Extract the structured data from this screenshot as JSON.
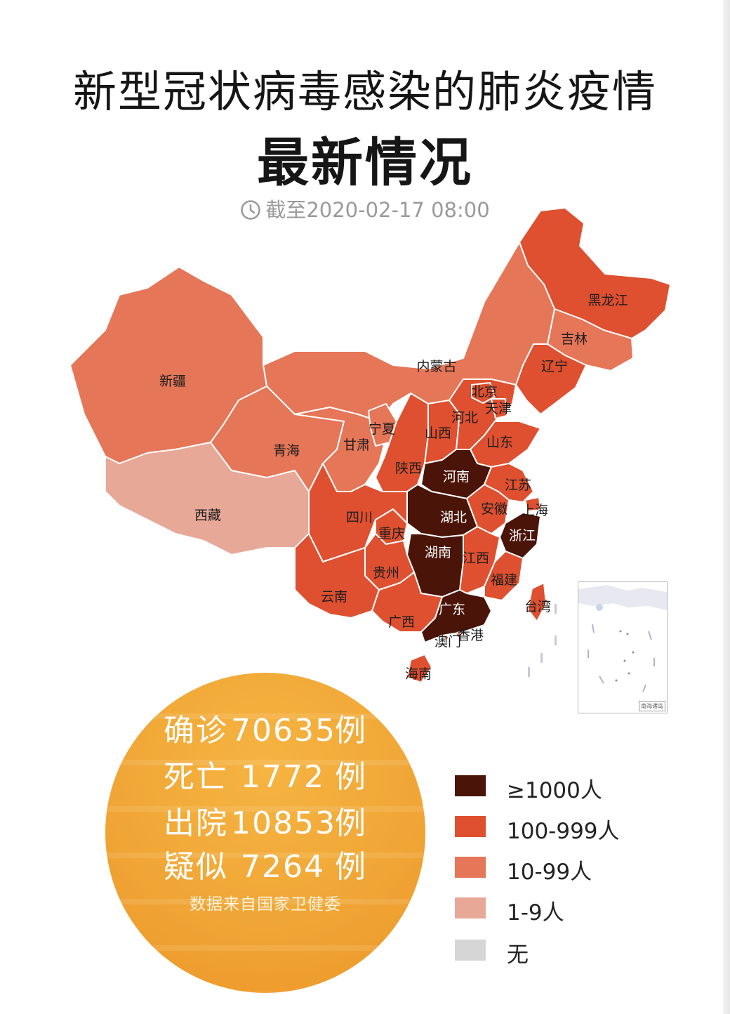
{
  "header": {
    "title": "新型冠状病毒感染的肺炎疫情",
    "subtitle": "最新情况",
    "timestamp": "截至2020-02-17 08:00",
    "clock_icon": "clock-icon"
  },
  "colors": {
    "level_1000_plus": "#4a1408",
    "level_100_999": "#de5030",
    "level_10_99": "#e67658",
    "level_1_9": "#e8a898",
    "level_none": "#d6d6d6",
    "stats_circle": "#f0a636"
  },
  "provinces": [
    {
      "name": "黑龙江",
      "level": "100-999"
    },
    {
      "name": "吉林",
      "level": "10-99"
    },
    {
      "name": "辽宁",
      "level": "100-999"
    },
    {
      "name": "内蒙古",
      "level": "10-99"
    },
    {
      "name": "北京",
      "level": "100-999"
    },
    {
      "name": "天津",
      "level": "100-999"
    },
    {
      "name": "河北",
      "level": "100-999"
    },
    {
      "name": "新疆",
      "level": "10-99"
    },
    {
      "name": "宁夏",
      "level": "10-99"
    },
    {
      "name": "山西",
      "level": "100-999"
    },
    {
      "name": "山东",
      "level": "100-999"
    },
    {
      "name": "青海",
      "level": "10-99"
    },
    {
      "name": "甘肃",
      "level": "10-99"
    },
    {
      "name": "陕西",
      "level": "100-999"
    },
    {
      "name": "河南",
      "level": "≥1000"
    },
    {
      "name": "江苏",
      "level": "100-999"
    },
    {
      "name": "西藏",
      "level": "1-9"
    },
    {
      "name": "四川",
      "level": "100-999"
    },
    {
      "name": "安徽",
      "level": "100-999"
    },
    {
      "name": "上海",
      "level": "100-999"
    },
    {
      "name": "湖北",
      "level": "≥1000"
    },
    {
      "name": "重庆",
      "level": "100-999"
    },
    {
      "name": "浙江",
      "level": "≥1000"
    },
    {
      "name": "湖南",
      "level": "≥1000"
    },
    {
      "name": "江西",
      "level": "100-999"
    },
    {
      "name": "贵州",
      "level": "100-999"
    },
    {
      "name": "福建",
      "level": "100-999"
    },
    {
      "name": "云南",
      "level": "100-999"
    },
    {
      "name": "台湾",
      "level": "10-99"
    },
    {
      "name": "广东",
      "level": "≥1000"
    },
    {
      "name": "广西",
      "level": "100-999"
    },
    {
      "name": "香港",
      "level": "10-99"
    },
    {
      "name": "澳门",
      "level": "10-99"
    },
    {
      "name": "海南",
      "level": "100-999"
    }
  ],
  "inset": {
    "label": "南海诸岛"
  },
  "stats": {
    "rows": [
      {
        "label": "确诊",
        "value": "70635",
        "unit": "例"
      },
      {
        "label": "死亡",
        "value": "1772",
        "unit": "例"
      },
      {
        "label": "出院",
        "value": "10853",
        "unit": "例"
      },
      {
        "label": "疑似",
        "value": "7264",
        "unit": "例"
      }
    ],
    "source": "数据来自国家卫健委"
  },
  "legend": [
    {
      "label": "≥1000人",
      "color": "#4a1408"
    },
    {
      "label": "100-999人",
      "color": "#de5030"
    },
    {
      "label": "10-99人",
      "color": "#e67658"
    },
    {
      "label": "1-9人",
      "color": "#e8a898"
    },
    {
      "label": "无",
      "color": "#d6d6d6"
    }
  ]
}
